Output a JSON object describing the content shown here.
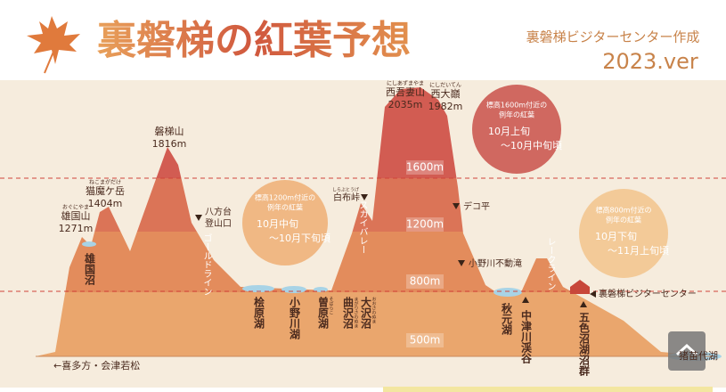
{
  "header": {
    "title": "裏磐梯の紅葉予想",
    "credit": "裏磐梯ビジターセンター作成",
    "version": "2023.ver"
  },
  "peaks": [
    {
      "reading": "おぐにやま",
      "name": "雄国山",
      "elevation": "1271m"
    },
    {
      "reading": "ねこまがだけ",
      "name": "猫魔ケ岳",
      "elevation": "1404m"
    },
    {
      "name": "磐梯山",
      "elevation": "1816m"
    },
    {
      "reading": "にしあずまやま",
      "name": "西吾妻山",
      "elevation": "2035m"
    },
    {
      "reading": "にしだいてん",
      "name": "西大巓",
      "elevation": "1982m"
    }
  ],
  "altitudes": [
    "1600m",
    "1200m",
    "800m",
    "500m"
  ],
  "forecasts": [
    {
      "heading": [
        "標高1200m付近の",
        "例年の紅葉"
      ],
      "period": [
        "10月中旬",
        "～10月下旬頃"
      ]
    },
    {
      "heading": [
        "標高1600m付近の",
        "例年の紅葉"
      ],
      "period": [
        "10月上旬",
        "～10月中旬頃"
      ]
    },
    {
      "heading": [
        "標高800m付近の",
        "例年の紅葉"
      ],
      "period": [
        "10月下旬",
        "～11月上旬頃"
      ]
    }
  ],
  "places": [
    {
      "name": "雄国沼"
    },
    {
      "name": "桧原湖"
    },
    {
      "name": "小野川湖"
    },
    {
      "reading": "そばらこ",
      "name": "曽原湖"
    },
    {
      "reading": "まがりさわぬま",
      "name": "曲沢沼"
    },
    {
      "reading": "おおさわぬま",
      "name": "大沢沼"
    },
    {
      "name": "秋元湖"
    },
    {
      "name": "中津川渓谷"
    },
    {
      "name": "五色沼湖沼群"
    },
    {
      "name": "猪苗代湖"
    }
  ],
  "roads": [
    "ゴールドライン",
    "スカイバレー",
    "レークライン"
  ],
  "points": [
    {
      "name": [
        "八方台",
        "登山口"
      ]
    },
    {
      "reading": "しらぶとうげ",
      "name": [
        "白布峠"
      ]
    },
    {
      "name": [
        "デコ平"
      ]
    },
    {
      "name": [
        "小野川不動滝"
      ]
    },
    {
      "name": [
        "裏磐梯ビジターセンター"
      ]
    }
  ],
  "direction": "←喜多方・会津若松"
}
